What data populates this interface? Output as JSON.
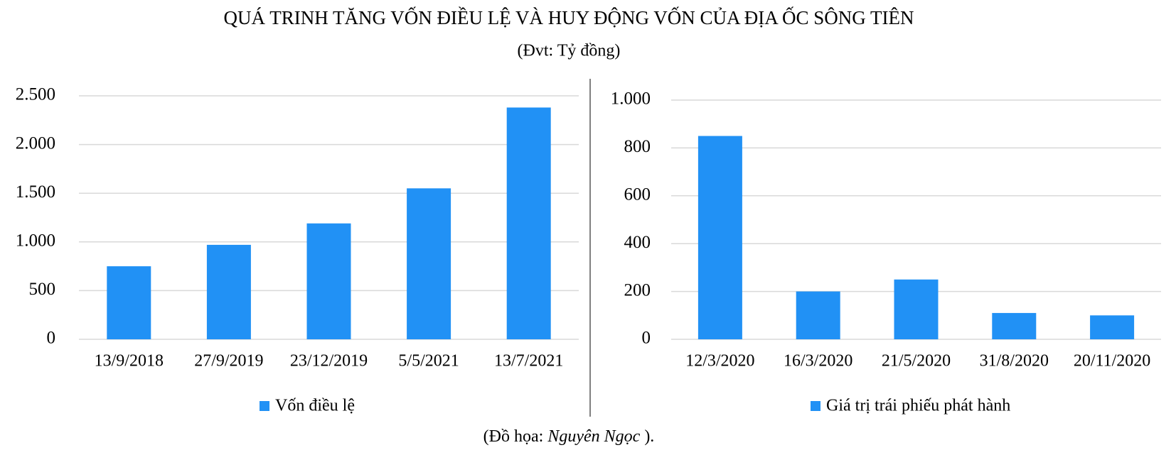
{
  "header": {
    "title": "QUÁ TRINH TĂNG VỐN ĐIỀU LỆ VÀ HUY ĐỘNG VỐN CỦA ĐỊA ỐC SÔNG TIÊN",
    "subtitle": "(Đvt: Tỷ đồng)"
  },
  "chart_data": [
    {
      "type": "bar",
      "categories": [
        "13/9/2018",
        "27/9/2019",
        "23/12/2019",
        "5/5/2021",
        "13/7/2021"
      ],
      "series": [
        {
          "name": "Vốn điều lệ",
          "color": "#2191f5",
          "values": [
            750,
            970,
            1190,
            1550,
            2380
          ]
        }
      ],
      "ylim": [
        0,
        2500
      ],
      "yticks": [
        0,
        500,
        {
          "value": 1000,
          "label": "1.000"
        },
        {
          "value": 1500,
          "label": "1.500"
        },
        {
          "value": 2000,
          "label": "2.000"
        },
        {
          "value": 2500,
          "label": "2.500"
        }
      ],
      "grid": true
    },
    {
      "type": "bar",
      "categories": [
        "12/3/2020",
        "16/3/2020",
        "21/5/2020",
        "31/8/2020",
        "20/11/2020"
      ],
      "series": [
        {
          "name": "Giá trị trái phiếu phát hành",
          "color": "#2191f5",
          "values": [
            850,
            200,
            250,
            110,
            100
          ]
        }
      ],
      "ylim": [
        0,
        1000
      ],
      "yticks": [
        0,
        200,
        400,
        600,
        800,
        {
          "value": 1000,
          "label": "1.000"
        }
      ],
      "grid": true
    }
  ],
  "credit": {
    "prefix": "(Đồ họa: ",
    "author": "Nguyên Ngọc",
    "suffix": " )."
  }
}
